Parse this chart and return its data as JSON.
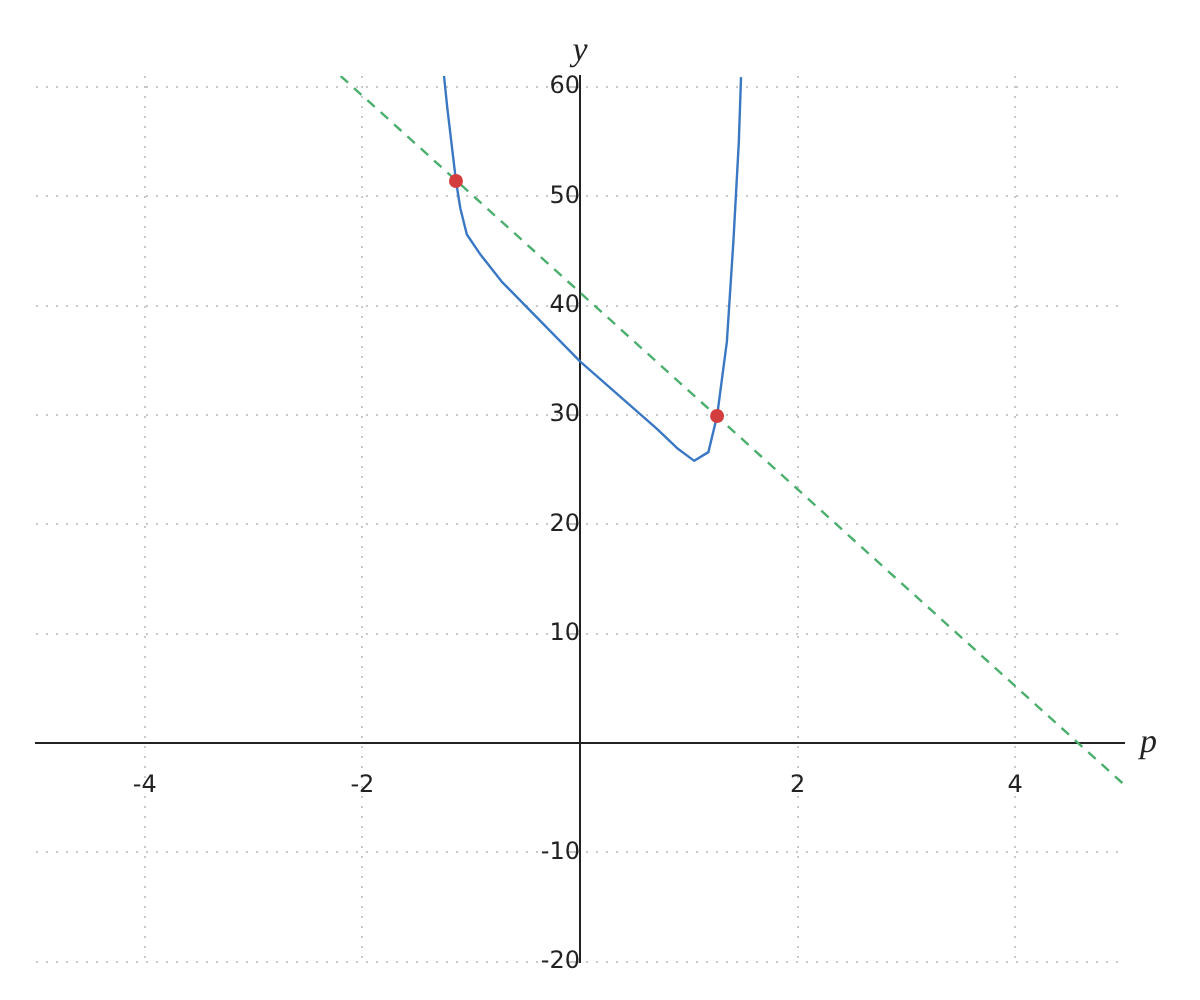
{
  "chart_data": {
    "type": "line",
    "xlabel": "p",
    "ylabel": "y",
    "xlim": [
      -5,
      5
    ],
    "ylim": [
      -20,
      61
    ],
    "xticks": [
      -4,
      -2,
      2,
      4
    ],
    "yticks": [
      -20,
      -10,
      10,
      20,
      30,
      40,
      50,
      60
    ],
    "grid": true,
    "legend": false,
    "series": [
      {
        "type": "line",
        "color": "#3a78c3",
        "marker": "none",
        "line_style": "solid",
        "x": [
          -1.25,
          -1.22,
          -1.14,
          -1.1,
          -1.04,
          -0.91,
          -0.72,
          0,
          0.71,
          0.9,
          1.05,
          1.18,
          1.26,
          1.35,
          1.41,
          1.46,
          1.48
        ],
        "values": [
          61,
          58.1,
          51.4,
          48.9,
          46.5,
          44.6,
          42.2,
          34.9,
          28.7,
          26.9,
          25.8,
          26.6,
          29.9,
          36.7,
          45.9,
          55,
          60.9
        ]
      },
      {
        "type": "line",
        "color": "#4caf6e",
        "marker": "none",
        "line_style": "dashed",
        "x": [
          -2.2,
          5
        ],
        "values": [
          61,
          -3.8
        ]
      },
      {
        "type": "scatter",
        "color": "#d43d3d",
        "marker": "circle",
        "x": [
          -1.14,
          1.26
        ],
        "values": [
          51.4,
          29.9
        ]
      }
    ]
  }
}
